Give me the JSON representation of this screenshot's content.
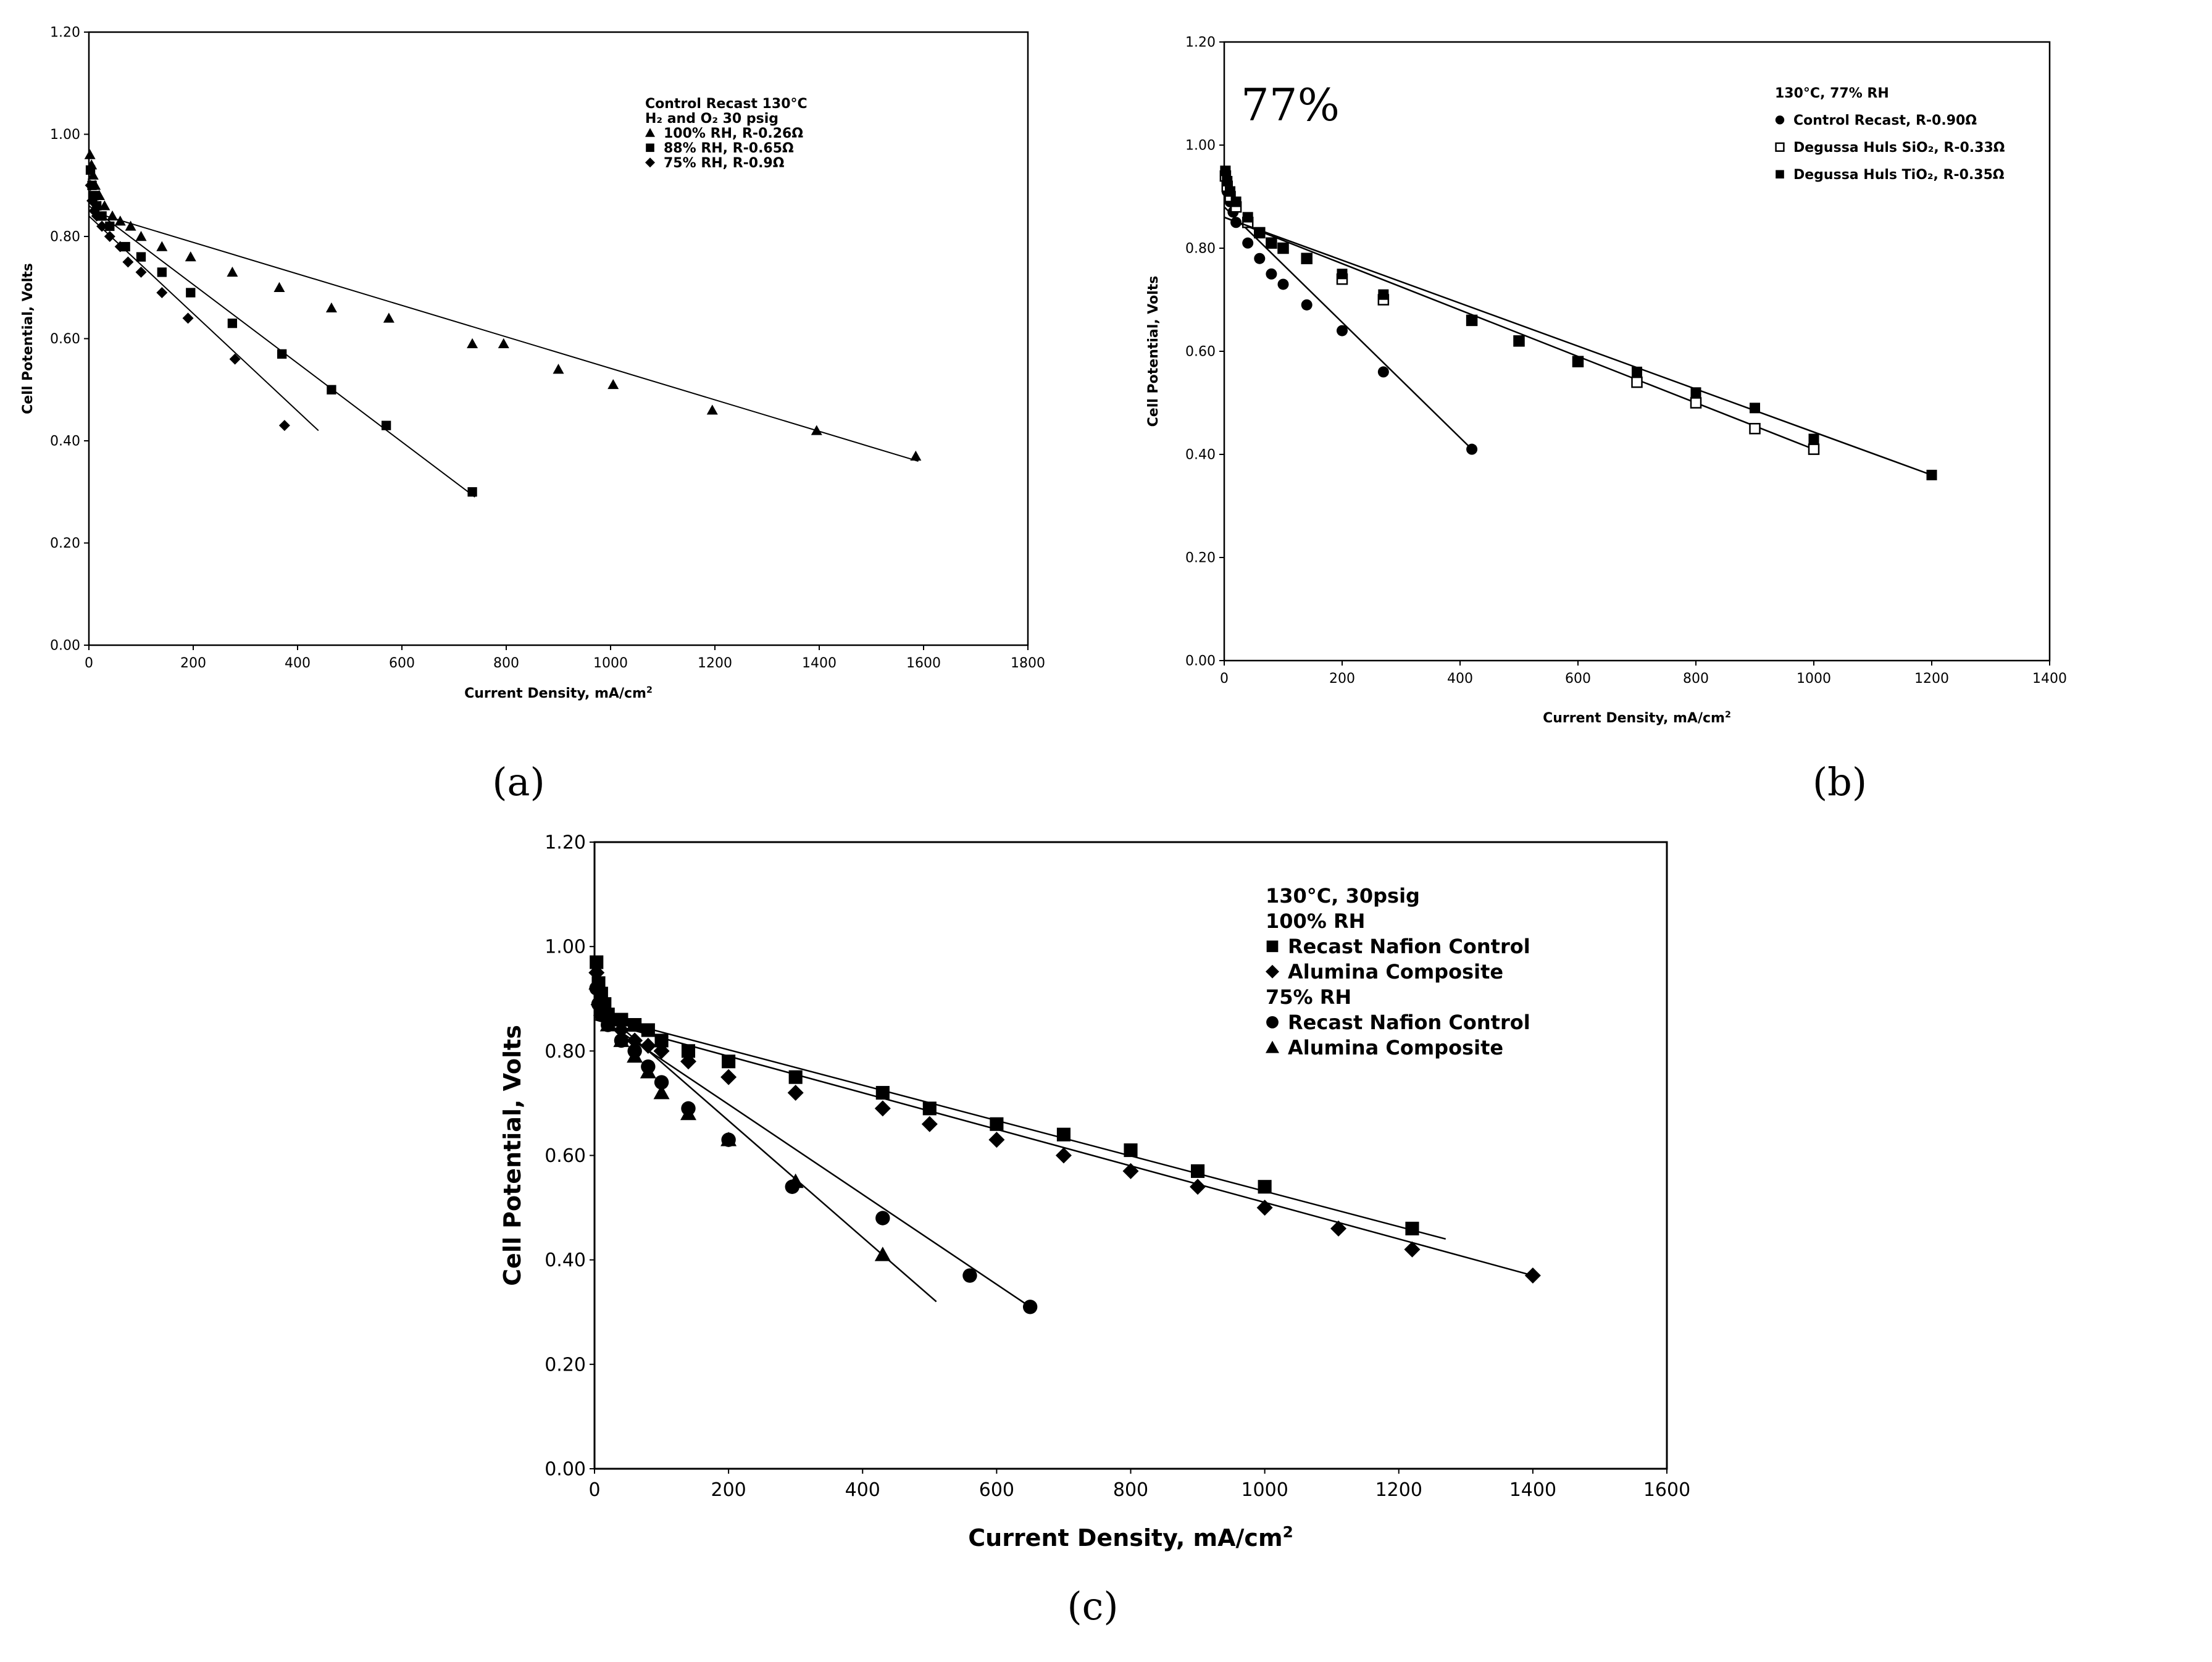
{
  "chart_data": [
    {
      "id": "a",
      "type": "scatter",
      "caption": "(a)",
      "xlabel": "Current Density, mA/cm",
      "xlabel_sup": "2",
      "ylabel": "Cell Potential, Volts",
      "xlim": [
        0,
        1800
      ],
      "ylim": [
        0,
        1.2
      ],
      "xticks": [
        "0",
        "200",
        "400",
        "600",
        "800",
        "1000",
        "1200",
        "1400",
        "1600",
        "1800"
      ],
      "yticks": [
        "0.00",
        "0.20",
        "0.40",
        "0.60",
        "0.80",
        "1.00",
        "1.20"
      ],
      "legend_title": "Control Recast 130°C",
      "legend_subtitle": "H₂ and O₂  30 psig",
      "series": [
        {
          "name": "100% RH, R-0.26Ω",
          "marker": "triangle",
          "x": [
            2,
            5,
            8,
            12,
            20,
            30,
            45,
            60,
            80,
            100,
            140,
            195,
            275,
            365,
            465,
            575,
            735,
            795,
            900,
            1005,
            1195,
            1395,
            1585
          ],
          "y": [
            0.96,
            0.94,
            0.92,
            0.9,
            0.88,
            0.86,
            0.84,
            0.83,
            0.82,
            0.8,
            0.78,
            0.76,
            0.73,
            0.7,
            0.66,
            0.64,
            0.59,
            0.59,
            0.54,
            0.51,
            0.46,
            0.42,
            0.37
          ],
          "fit": [
            [
              0,
              0.85
            ],
            [
              1590,
              0.36
            ]
          ]
        },
        {
          "name": "88% RH, R-0.65Ω",
          "marker": "square",
          "x": [
            3,
            6,
            10,
            15,
            25,
            40,
            70,
            100,
            140,
            195,
            275,
            370,
            465,
            570,
            735
          ],
          "y": [
            0.93,
            0.9,
            0.88,
            0.86,
            0.84,
            0.82,
            0.78,
            0.76,
            0.73,
            0.69,
            0.63,
            0.57,
            0.5,
            0.43,
            0.3
          ],
          "fit": [
            [
              0,
              0.86
            ],
            [
              740,
              0.29
            ]
          ]
        },
        {
          "name": "75% RH,   R-0.9Ω",
          "marker": "diamond",
          "x": [
            3,
            6,
            10,
            15,
            25,
            40,
            60,
            75,
            100,
            140,
            190,
            280,
            375
          ],
          "y": [
            0.9,
            0.87,
            0.85,
            0.84,
            0.82,
            0.8,
            0.78,
            0.75,
            0.73,
            0.69,
            0.64,
            0.56,
            0.43
          ],
          "fit": [
            [
              0,
              0.84
            ],
            [
              440,
              0.42
            ]
          ]
        }
      ]
    },
    {
      "id": "b",
      "type": "scatter",
      "caption": "(b)",
      "xlabel": "Current Density, mA/cm",
      "xlabel_sup": "2",
      "ylabel": "Cell Potential, Volts",
      "xlim": [
        0,
        1400
      ],
      "ylim": [
        0,
        1.2
      ],
      "xticks": [
        "0",
        "200",
        "400",
        "600",
        "800",
        "1000",
        "1200",
        "1400"
      ],
      "yticks": [
        "0.00",
        "0.20",
        "0.40",
        "0.60",
        "0.80",
        "1.00",
        "1.20"
      ],
      "annotation": "77%",
      "legend_title": "130°C, 77% RH",
      "series": [
        {
          "name": "Control Recast, R-0.90Ω",
          "marker": "circle",
          "x": [
            2,
            5,
            10,
            15,
            20,
            40,
            60,
            80,
            100,
            140,
            200,
            270,
            420
          ],
          "y": [
            0.94,
            0.91,
            0.89,
            0.87,
            0.85,
            0.81,
            0.78,
            0.75,
            0.73,
            0.69,
            0.64,
            0.56,
            0.41
          ],
          "fit": [
            [
              0,
              0.88
            ],
            [
              420,
              0.41
            ]
          ]
        },
        {
          "name": "Degussa Huls SiO₂, R-0.33Ω",
          "marker": "square-open",
          "x": [
            2,
            5,
            10,
            20,
            40,
            60,
            80,
            100,
            140,
            200,
            270,
            420,
            500,
            600,
            700,
            800,
            900,
            1000
          ],
          "y": [
            0.94,
            0.92,
            0.9,
            0.88,
            0.85,
            0.83,
            0.81,
            0.8,
            0.78,
            0.74,
            0.7,
            0.66,
            0.62,
            0.58,
            0.54,
            0.5,
            0.45,
            0.41
          ],
          "fit": [
            [
              0,
              0.86
            ],
            [
              1000,
              0.41
            ]
          ]
        },
        {
          "name": "Degussa Huls TiO₂, R-0.35Ω",
          "marker": "square",
          "x": [
            2,
            5,
            10,
            20,
            40,
            60,
            80,
            100,
            140,
            200,
            270,
            420,
            500,
            600,
            700,
            800,
            900,
            1000,
            1200
          ],
          "y": [
            0.95,
            0.93,
            0.91,
            0.89,
            0.86,
            0.83,
            0.81,
            0.8,
            0.78,
            0.75,
            0.71,
            0.66,
            0.62,
            0.58,
            0.56,
            0.52,
            0.49,
            0.43,
            0.36
          ],
          "fit": [
            [
              0,
              0.86
            ],
            [
              1200,
              0.36
            ]
          ]
        }
      ]
    },
    {
      "id": "c",
      "type": "scatter",
      "caption": "(c)",
      "xlabel": "Current Density, mA/cm",
      "xlabel_sup": "2",
      "ylabel": "Cell Potential, Volts",
      "xlim": [
        0,
        1600
      ],
      "ylim": [
        0,
        1.2
      ],
      "xticks": [
        "0",
        "200",
        "400",
        "600",
        "800",
        "1000",
        "1200",
        "1400",
        "1600"
      ],
      "yticks": [
        "0.00",
        "0.20",
        "0.40",
        "0.60",
        "0.80",
        "1.00",
        "1.20"
      ],
      "legend_title": "130°C, 30psig",
      "legend_group1": "100% RH",
      "legend_group2": "75% RH",
      "series": [
        {
          "name": "Recast Nafion Control",
          "group": "100% RH",
          "marker": "square",
          "x": [
            3,
            6,
            10,
            15,
            20,
            40,
            60,
            80,
            100,
            140,
            200,
            300,
            430,
            500,
            600,
            700,
            800,
            900,
            1000,
            1220
          ],
          "y": [
            0.97,
            0.93,
            0.91,
            0.89,
            0.87,
            0.86,
            0.85,
            0.84,
            0.82,
            0.8,
            0.78,
            0.75,
            0.72,
            0.69,
            0.66,
            0.64,
            0.61,
            0.57,
            0.54,
            0.46
          ],
          "fit": [
            [
              0,
              0.87
            ],
            [
              1270,
              0.44
            ]
          ]
        },
        {
          "name": "Alumina Composite",
          "group": "100% RH",
          "marker": "diamond",
          "x": [
            3,
            6,
            10,
            20,
            40,
            60,
            80,
            100,
            140,
            200,
            300,
            430,
            500,
            600,
            700,
            800,
            900,
            1000,
            1110,
            1220,
            1400
          ],
          "y": [
            0.95,
            0.92,
            0.89,
            0.86,
            0.84,
            0.82,
            0.81,
            0.8,
            0.78,
            0.75,
            0.72,
            0.69,
            0.66,
            0.63,
            0.6,
            0.57,
            0.54,
            0.5,
            0.46,
            0.42,
            0.37
          ],
          "fit": [
            [
              0,
              0.86
            ],
            [
              1400,
              0.37
            ]
          ]
        },
        {
          "name": "Recast Nafion Control",
          "group": "75% RH",
          "marker": "circle",
          "x": [
            3,
            6,
            10,
            20,
            40,
            60,
            80,
            100,
            140,
            200,
            295,
            430,
            560,
            650
          ],
          "y": [
            0.92,
            0.89,
            0.87,
            0.85,
            0.82,
            0.8,
            0.77,
            0.74,
            0.69,
            0.63,
            0.54,
            0.48,
            0.37,
            0.31
          ],
          "fit": [
            [
              0,
              0.87
            ],
            [
              650,
              0.31
            ]
          ]
        },
        {
          "name": "Alumina Composite",
          "group": "75% RH",
          "marker": "triangle",
          "x": [
            3,
            6,
            10,
            20,
            40,
            60,
            80,
            100,
            140,
            200,
            300,
            430
          ],
          "y": [
            0.93,
            0.9,
            0.88,
            0.85,
            0.82,
            0.79,
            0.76,
            0.72,
            0.68,
            0.63,
            0.55,
            0.41
          ],
          "fit": [
            [
              0,
              0.89
            ],
            [
              510,
              0.32
            ]
          ]
        }
      ]
    }
  ]
}
